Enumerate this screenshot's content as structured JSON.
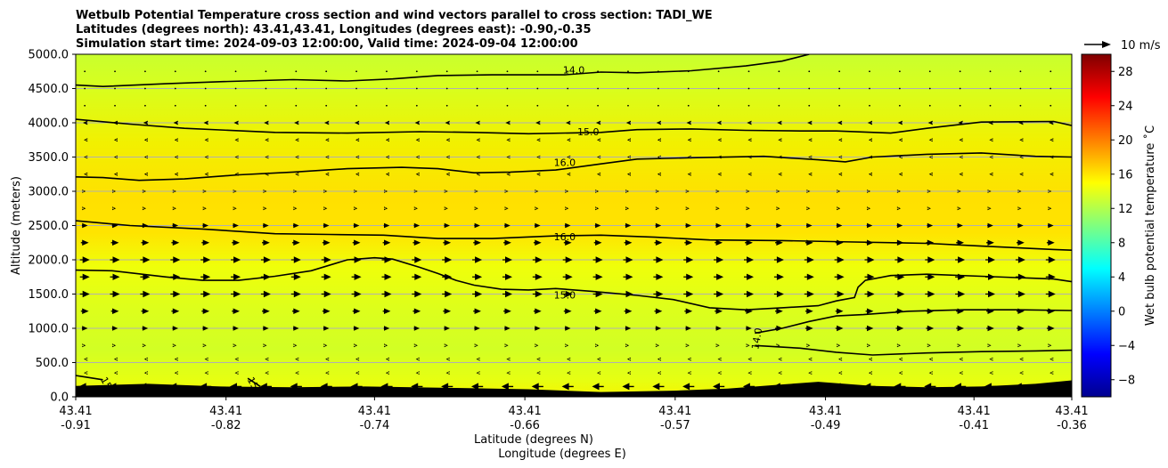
{
  "chart_data": {
    "type": "contourf_quiver",
    "title_lines": [
      "Wetbulb Potential Temperature cross section and wind vectors parallel to cross section: TADI_WE",
      "Latitudes (degrees north): 43.41,43.41, Longitudes (degrees east): -0.90,-0.35",
      "Simulation start time: 2024-09-03 12:00:00, Valid time: 2024-09-04 12:00:00"
    ],
    "ylabel": "Altitude (meters)",
    "xlabel_lines": [
      "Latitude (degrees N)",
      "Longitude (degrees E)"
    ],
    "ylim": [
      0,
      5000
    ],
    "xlim": [
      -0.91,
      -0.36
    ],
    "y_ticks": [
      0,
      500,
      1000,
      1500,
      2000,
      2500,
      3000,
      3500,
      4000,
      4500,
      5000
    ],
    "y_tick_labels": [
      "0.0",
      "500.0",
      "1000.0",
      "1500.0",
      "2000.0",
      "2500.0",
      "3000.0",
      "3500.0",
      "4000.0",
      "4500.0",
      "5000.0"
    ],
    "x_ticks": [
      {
        "lat": "43.41",
        "lon": "-0.91",
        "x": -0.91
      },
      {
        "lat": "43.41",
        "lon": "-0.82",
        "x": -0.827
      },
      {
        "lat": "43.41",
        "lon": "-0.74",
        "x": -0.745
      },
      {
        "lat": "43.41",
        "lon": "-0.66",
        "x": -0.662
      },
      {
        "lat": "43.41",
        "lon": "-0.57",
        "x": -0.579
      },
      {
        "lat": "43.41",
        "lon": "-0.49",
        "x": -0.496
      },
      {
        "lat": "43.41",
        "lon": "-0.41",
        "x": -0.414
      },
      {
        "lat": "43.41",
        "lon": "-0.36",
        "x": -0.36
      }
    ],
    "grid": "horizontal",
    "colorbar": {
      "label": "Wet bulb potential temperature ˚C",
      "range": [
        -10,
        30
      ],
      "ticks": [
        -8,
        -4,
        0,
        4,
        8,
        12,
        16,
        20,
        24,
        28
      ],
      "tick_labels": [
        "−8",
        "−4",
        "0",
        "4",
        "8",
        "12",
        "16",
        "20",
        "24",
        "28"
      ],
      "colormap": "jet"
    },
    "quiver_key": {
      "label": "10 m/s",
      "speed": 10
    },
    "contours": [
      {
        "level": 14.0,
        "label": "14.0",
        "label_at": [
          -0.635,
          4770
        ],
        "points": [
          [
            -0.91,
            4550
          ],
          [
            -0.895,
            4530
          ],
          [
            -0.86,
            4570
          ],
          [
            -0.83,
            4600
          ],
          [
            -0.79,
            4630
          ],
          [
            -0.76,
            4610
          ],
          [
            -0.735,
            4640
          ],
          [
            -0.71,
            4690
          ],
          [
            -0.68,
            4700
          ],
          [
            -0.64,
            4700
          ],
          [
            -0.62,
            4740
          ],
          [
            -0.6,
            4730
          ],
          [
            -0.57,
            4760
          ],
          [
            -0.54,
            4830
          ],
          [
            -0.52,
            4900
          ],
          [
            -0.505,
            5000
          ]
        ]
      },
      {
        "level": 15.0,
        "label": "15.0",
        "label_at": [
          -0.627,
          3870
        ],
        "points": [
          [
            -0.91,
            4050
          ],
          [
            -0.88,
            3980
          ],
          [
            -0.85,
            3920
          ],
          [
            -0.8,
            3860
          ],
          [
            -0.76,
            3850
          ],
          [
            -0.72,
            3870
          ],
          [
            -0.69,
            3860
          ],
          [
            -0.66,
            3840
          ],
          [
            -0.62,
            3860
          ],
          [
            -0.6,
            3900
          ],
          [
            -0.57,
            3910
          ],
          [
            -0.54,
            3890
          ],
          [
            -0.51,
            3880
          ],
          [
            -0.49,
            3880
          ],
          [
            -0.46,
            3850
          ],
          [
            -0.44,
            3920
          ],
          [
            -0.41,
            4010
          ],
          [
            -0.37,
            4020
          ],
          [
            -0.36,
            3960
          ]
        ]
      },
      {
        "level": 16.0,
        "label": "16.0",
        "label_at": [
          -0.64,
          3420
        ],
        "points": [
          [
            -0.91,
            3210
          ],
          [
            -0.895,
            3200
          ],
          [
            -0.875,
            3160
          ],
          [
            -0.85,
            3180
          ],
          [
            -0.82,
            3240
          ],
          [
            -0.79,
            3280
          ],
          [
            -0.76,
            3330
          ],
          [
            -0.73,
            3350
          ],
          [
            -0.71,
            3330
          ],
          [
            -0.69,
            3270
          ],
          [
            -0.67,
            3280
          ],
          [
            -0.645,
            3310
          ],
          [
            -0.62,
            3400
          ],
          [
            -0.6,
            3470
          ],
          [
            -0.57,
            3490
          ],
          [
            -0.53,
            3510
          ],
          [
            -0.5,
            3460
          ],
          [
            -0.485,
            3430
          ],
          [
            -0.47,
            3500
          ],
          [
            -0.44,
            3540
          ],
          [
            -0.41,
            3560
          ],
          [
            -0.38,
            3510
          ],
          [
            -0.36,
            3500
          ]
        ]
      },
      {
        "level": 16.0,
        "label": "16.0",
        "label_at": [
          -0.64,
          2340
        ],
        "points": [
          [
            -0.91,
            2570
          ],
          [
            -0.88,
            2500
          ],
          [
            -0.84,
            2450
          ],
          [
            -0.8,
            2380
          ],
          [
            -0.77,
            2370
          ],
          [
            -0.74,
            2360
          ],
          [
            -0.71,
            2310
          ],
          [
            -0.68,
            2310
          ],
          [
            -0.645,
            2350
          ],
          [
            -0.62,
            2360
          ],
          [
            -0.59,
            2330
          ],
          [
            -0.56,
            2290
          ],
          [
            -0.52,
            2280
          ],
          [
            -0.48,
            2260
          ],
          [
            -0.44,
            2240
          ],
          [
            -0.41,
            2200
          ],
          [
            -0.37,
            2150
          ],
          [
            -0.36,
            2140
          ]
        ]
      },
      {
        "level": 15.0,
        "label": "15.0",
        "label_at": [
          -0.64,
          1490
        ],
        "points": [
          [
            -0.91,
            1850
          ],
          [
            -0.89,
            1840
          ],
          [
            -0.86,
            1750
          ],
          [
            -0.84,
            1700
          ],
          [
            -0.82,
            1700
          ],
          [
            -0.8,
            1760
          ],
          [
            -0.78,
            1840
          ],
          [
            -0.76,
            2000
          ],
          [
            -0.745,
            2030
          ],
          [
            -0.735,
            2010
          ],
          [
            -0.72,
            1890
          ],
          [
            -0.71,
            1800
          ],
          [
            -0.7,
            1700
          ],
          [
            -0.69,
            1630
          ],
          [
            -0.675,
            1570
          ],
          [
            -0.66,
            1560
          ],
          [
            -0.645,
            1580
          ],
          [
            -0.625,
            1540
          ],
          [
            -0.6,
            1480
          ],
          [
            -0.58,
            1420
          ],
          [
            -0.56,
            1300
          ],
          [
            -0.54,
            1270
          ],
          [
            -0.52,
            1300
          ],
          [
            -0.5,
            1330
          ],
          [
            -0.49,
            1400
          ],
          [
            -0.48,
            1450
          ],
          [
            -0.478,
            1600
          ],
          [
            -0.474,
            1700
          ],
          [
            -0.46,
            1770
          ],
          [
            -0.44,
            1790
          ],
          [
            -0.41,
            1760
          ],
          [
            -0.37,
            1720
          ],
          [
            -0.36,
            1680
          ]
        ]
      },
      {
        "level": 14.0,
        "label": "14.0",
        "label_at": [
          -0.534,
          850
        ],
        "points": [
          [
            -0.535,
            930
          ],
          [
            -0.52,
            1000
          ],
          [
            -0.505,
            1100
          ],
          [
            -0.49,
            1180
          ],
          [
            -0.475,
            1200
          ],
          [
            -0.45,
            1250
          ],
          [
            -0.42,
            1270
          ],
          [
            -0.39,
            1270
          ],
          [
            -0.36,
            1260
          ]
        ]
      },
      {
        "level": 14.0,
        "label": "",
        "label_at": null,
        "points": [
          [
            -0.535,
            750
          ],
          [
            -0.51,
            710
          ],
          [
            -0.49,
            650
          ],
          [
            -0.47,
            610
          ],
          [
            -0.44,
            640
          ],
          [
            -0.41,
            660
          ],
          [
            -0.38,
            670
          ],
          [
            -0.36,
            680
          ]
        ]
      },
      {
        "level": 15.0,
        "label": "15",
        "label_at": [
          -0.893,
          200
        ],
        "points": [
          [
            -0.91,
            310
          ],
          [
            -0.895,
            250
          ]
        ]
      },
      {
        "level": 15.0,
        "label": "15",
        "label_at": [
          -0.812,
          200
        ],
        "points": [
          [
            -0.815,
            270
          ],
          [
            -0.808,
            150
          ]
        ]
      }
    ],
    "terrain_top": [
      [
        -0.91,
        160
      ],
      [
        -0.87,
        190
      ],
      [
        -0.83,
        150
      ],
      [
        -0.79,
        140
      ],
      [
        -0.75,
        150
      ],
      [
        -0.7,
        130
      ],
      [
        -0.66,
        110
      ],
      [
        -0.62,
        70
      ],
      [
        -0.58,
        90
      ],
      [
        -0.55,
        120
      ],
      [
        -0.52,
        180
      ],
      [
        -0.5,
        220
      ],
      [
        -0.47,
        160
      ],
      [
        -0.44,
        140
      ],
      [
        -0.41,
        150
      ],
      [
        -0.38,
        190
      ],
      [
        -0.36,
        240
      ]
    ],
    "wind": {
      "x_positions": 33,
      "levels_m": [
        150,
        350,
        550,
        750,
        1000,
        1250,
        1500,
        1750,
        2000,
        2250,
        2500,
        2750,
        3000,
        3250,
        3500,
        3750,
        4000,
        4250,
        4500,
        4750
      ],
      "u_by_level": [
        -6,
        -1,
        -1,
        1,
        3,
        4,
        5,
        5,
        5,
        4,
        3,
        1,
        1,
        -1,
        -1,
        -1,
        -2,
        0,
        0,
        0
      ]
    }
  }
}
